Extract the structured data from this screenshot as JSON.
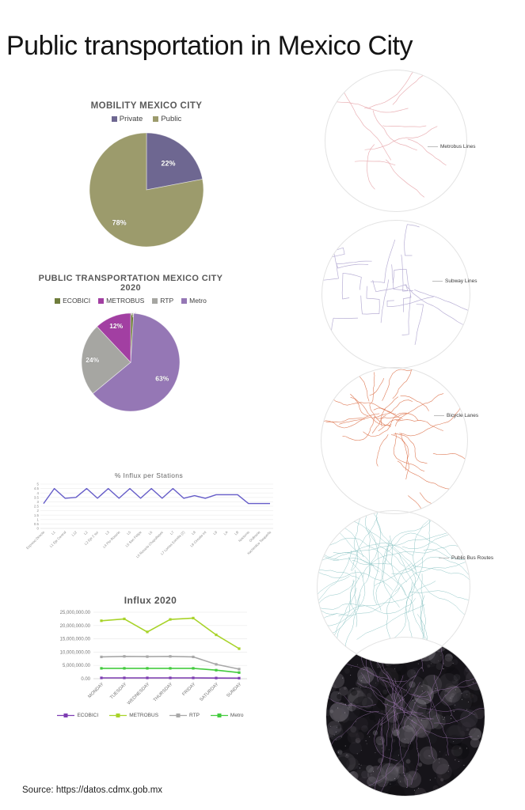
{
  "page": {
    "title": "Public transportation in Mexico City",
    "source": "Source: https://datos.cdmx.gob.mx",
    "background": "#ffffff"
  },
  "chart_data": [
    {
      "id": "mobility-pie",
      "type": "pie",
      "title": "MOBILITY MEXICO CITY",
      "legend_position": "top",
      "legend": [
        {
          "label": "Private",
          "color": "#6e6791"
        },
        {
          "label": "Public",
          "color": "#9c9b6c"
        }
      ],
      "slices": [
        {
          "label": "Private",
          "value": 22,
          "pct_label": "22%",
          "color": "#6e6791"
        },
        {
          "label": "Public",
          "value": 78,
          "pct_label": "78%",
          "color": "#9c9b6c"
        }
      ]
    },
    {
      "id": "transport-pie",
      "type": "pie",
      "title": "PUBLIC TRANSPORTATION MEXICO CITY 2020",
      "legend_position": "top",
      "legend": [
        {
          "label": "ECOBICI",
          "color": "#6f7d3c"
        },
        {
          "label": "METROBUS",
          "color": "#a23fa2"
        },
        {
          "label": "RTP",
          "color": "#a6a6a2"
        },
        {
          "label": "Metro",
          "color": "#9577b5"
        }
      ],
      "slices": [
        {
          "label": "ECOBICI",
          "value": 1,
          "pct_label": "1%",
          "color": "#6f7d3c"
        },
        {
          "label": "Metro",
          "value": 63,
          "pct_label": "63%",
          "color": "#9577b5"
        },
        {
          "label": "RTP",
          "value": 24,
          "pct_label": "24%",
          "color": "#a6a6a2"
        },
        {
          "label": "METROBUS",
          "value": 12,
          "pct_label": "12%",
          "color": "#a23fa2"
        }
      ]
    },
    {
      "id": "influx-stations",
      "type": "line",
      "title": "% Influx per Stations",
      "line_color": "#655cc8",
      "grid": true,
      "ylim": [
        0,
        5
      ],
      "ytick_step": 0.5,
      "categories": [
        "Expreso Directo",
        "L1",
        "L1 Eje Central",
        "L12",
        "L2",
        "L2 Eje 2 sur",
        "L3",
        "L4 Pto Rosario",
        "L5",
        "L5 San Felipe",
        "L6",
        "L6 Rosario Chapultepec",
        "L7",
        "L7 Lomas Estrella (2)",
        "L8",
        "L8 Circuito Int",
        "L9",
        "LA",
        "LB",
        "Nocturno",
        "Ordinario",
        "Xochimilco Tasqueña"
      ],
      "values": [
        2.8,
        4.5,
        3.4,
        3.5,
        4.5,
        3.4,
        4.5,
        3.4,
        4.5,
        3.4,
        4.5,
        3.4,
        4.5,
        3.4,
        3.7,
        3.4,
        3.8,
        3.8,
        3.8,
        2.8,
        2.8,
        2.8
      ]
    },
    {
      "id": "influx-2020",
      "type": "line",
      "title": "Influx 2020",
      "grid": true,
      "legend_position": "bottom",
      "ylim": [
        0,
        25000000
      ],
      "ytick_labels": [
        "0.00",
        "5,000,000.00",
        "10,000,000.00",
        "15,000,000.00",
        "20,000,000.00",
        "25,000,000.00"
      ],
      "categories": [
        "MONDAY",
        "TUESDAY",
        "WEDNESDAY",
        "THURSDAY",
        "FRIDAY",
        "SATURDAY",
        "SUNDAY"
      ],
      "series": [
        {
          "name": "ECOBICI",
          "color": "#7e3db2",
          "values": [
            300000,
            300000,
            300000,
            300000,
            300000,
            250000,
            200000
          ]
        },
        {
          "name": "METROBUS",
          "color": "#a8d329",
          "values": [
            21800000,
            22500000,
            17600000,
            22300000,
            22800000,
            16500000,
            11300000
          ]
        },
        {
          "name": "RTP",
          "color": "#a8a8a8",
          "values": [
            8200000,
            8400000,
            8300000,
            8400000,
            8200000,
            5400000,
            3600000
          ]
        },
        {
          "name": "Metro",
          "color": "#43cb3e",
          "values": [
            3900000,
            3900000,
            3900000,
            3900000,
            3900000,
            3200000,
            2300000
          ]
        }
      ]
    }
  ],
  "maps": [
    {
      "label": "Metrobus Lines",
      "color": "#e8a9ad",
      "kind": "network"
    },
    {
      "label": "Subway Lines",
      "color": "#b0a6d0",
      "kind": "network"
    },
    {
      "label": "Bicycle Lanes",
      "color": "#dc6e46",
      "kind": "network"
    },
    {
      "label": "Public Bus Routes",
      "color": "#86c1c1",
      "kind": "network"
    },
    {
      "label": "",
      "color": "#a077b4",
      "kind": "satellite"
    }
  ]
}
